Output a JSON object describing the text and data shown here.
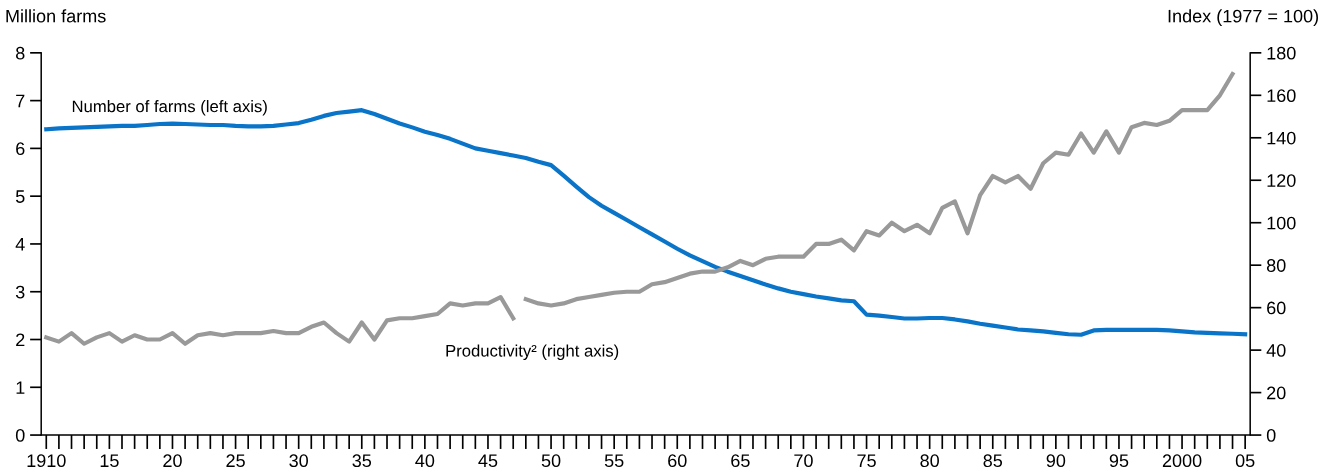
{
  "chart_data": {
    "type": "line",
    "ylabel": "Million farms",
    "y2label": "Index (1977 = 100)",
    "xlim": [
      1909.6,
      2005.4
    ],
    "xticks": [
      {
        "value": 1910,
        "label": "1910"
      },
      {
        "value": 1911,
        "label": null
      },
      {
        "value": 1912,
        "label": null
      },
      {
        "value": 1913,
        "label": null
      },
      {
        "value": 1914,
        "label": null
      },
      {
        "value": 1915,
        "label": "15"
      },
      {
        "value": 1916,
        "label": null
      },
      {
        "value": 1917,
        "label": null
      },
      {
        "value": 1918,
        "label": null
      },
      {
        "value": 1919,
        "label": null
      },
      {
        "value": 1920,
        "label": "20"
      },
      {
        "value": 1921,
        "label": null
      },
      {
        "value": 1922,
        "label": null
      },
      {
        "value": 1923,
        "label": null
      },
      {
        "value": 1924,
        "label": null
      },
      {
        "value": 1925,
        "label": "25"
      },
      {
        "value": 1926,
        "label": null
      },
      {
        "value": 1927,
        "label": null
      },
      {
        "value": 1928,
        "label": null
      },
      {
        "value": 1929,
        "label": null
      },
      {
        "value": 1930,
        "label": "30"
      },
      {
        "value": 1931,
        "label": null
      },
      {
        "value": 1932,
        "label": null
      },
      {
        "value": 1933,
        "label": null
      },
      {
        "value": 1934,
        "label": null
      },
      {
        "value": 1935,
        "label": "35"
      },
      {
        "value": 1936,
        "label": null
      },
      {
        "value": 1937,
        "label": null
      },
      {
        "value": 1938,
        "label": null
      },
      {
        "value": 1939,
        "label": null
      },
      {
        "value": 1940,
        "label": "40"
      },
      {
        "value": 1941,
        "label": null
      },
      {
        "value": 1942,
        "label": null
      },
      {
        "value": 1943,
        "label": null
      },
      {
        "value": 1944,
        "label": null
      },
      {
        "value": 1945,
        "label": "45"
      },
      {
        "value": 1946,
        "label": null
      },
      {
        "value": 1947,
        "label": null
      },
      {
        "value": 1948,
        "label": null
      },
      {
        "value": 1949,
        "label": null
      },
      {
        "value": 1950,
        "label": "50"
      },
      {
        "value": 1951,
        "label": null
      },
      {
        "value": 1952,
        "label": null
      },
      {
        "value": 1953,
        "label": null
      },
      {
        "value": 1954,
        "label": null
      },
      {
        "value": 1955,
        "label": "55"
      },
      {
        "value": 1956,
        "label": null
      },
      {
        "value": 1957,
        "label": null
      },
      {
        "value": 1958,
        "label": null
      },
      {
        "value": 1959,
        "label": null
      },
      {
        "value": 1960,
        "label": "60"
      },
      {
        "value": 1961,
        "label": null
      },
      {
        "value": 1962,
        "label": null
      },
      {
        "value": 1963,
        "label": null
      },
      {
        "value": 1964,
        "label": null
      },
      {
        "value": 1965,
        "label": "65"
      },
      {
        "value": 1966,
        "label": null
      },
      {
        "value": 1967,
        "label": null
      },
      {
        "value": 1968,
        "label": null
      },
      {
        "value": 1969,
        "label": null
      },
      {
        "value": 1970,
        "label": "70"
      },
      {
        "value": 1971,
        "label": null
      },
      {
        "value": 1972,
        "label": null
      },
      {
        "value": 1973,
        "label": null
      },
      {
        "value": 1974,
        "label": null
      },
      {
        "value": 1975,
        "label": "75"
      },
      {
        "value": 1976,
        "label": null
      },
      {
        "value": 1977,
        "label": null
      },
      {
        "value": 1978,
        "label": null
      },
      {
        "value": 1979,
        "label": null
      },
      {
        "value": 1980,
        "label": "80"
      },
      {
        "value": 1981,
        "label": null
      },
      {
        "value": 1982,
        "label": null
      },
      {
        "value": 1983,
        "label": null
      },
      {
        "value": 1984,
        "label": null
      },
      {
        "value": 1985,
        "label": "85"
      },
      {
        "value": 1986,
        "label": null
      },
      {
        "value": 1987,
        "label": null
      },
      {
        "value": 1988,
        "label": null
      },
      {
        "value": 1989,
        "label": null
      },
      {
        "value": 1990,
        "label": "90"
      },
      {
        "value": 1991,
        "label": null
      },
      {
        "value": 1992,
        "label": null
      },
      {
        "value": 1993,
        "label": null
      },
      {
        "value": 1994,
        "label": null
      },
      {
        "value": 1995,
        "label": "95"
      },
      {
        "value": 1996,
        "label": null
      },
      {
        "value": 1997,
        "label": null
      },
      {
        "value": 1998,
        "label": null
      },
      {
        "value": 1999,
        "label": null
      },
      {
        "value": 2000,
        "label": "2000"
      },
      {
        "value": 2001,
        "label": null
      },
      {
        "value": 2002,
        "label": null
      },
      {
        "value": 2003,
        "label": null
      },
      {
        "value": 2004,
        "label": null
      },
      {
        "value": 2005,
        "label": "05"
      }
    ],
    "ylim": [
      0,
      8
    ],
    "yticks": [
      0,
      1,
      2,
      3,
      4,
      5,
      6,
      7,
      8
    ],
    "y2lim": [
      0,
      180
    ],
    "y2ticks": [
      0,
      20,
      40,
      60,
      80,
      100,
      120,
      140,
      160,
      180
    ],
    "grid": false,
    "legend": false,
    "marker": "none",
    "line_style": "solid",
    "series": [
      {
        "name": "Number of farms (left axis)",
        "color": "#0a74c9",
        "x": [
          1910,
          1911,
          1912,
          1913,
          1914,
          1915,
          1916,
          1917,
          1918,
          1919,
          1920,
          1921,
          1922,
          1923,
          1924,
          1925,
          1926,
          1927,
          1928,
          1929,
          1930,
          1931,
          1932,
          1933,
          1934,
          1935,
          1936,
          1937,
          1938,
          1939,
          1940,
          1941,
          1942,
          1943,
          1944,
          1945,
          1946,
          1947,
          1948,
          1949,
          1950,
          1951,
          1952,
          1953,
          1954,
          1955,
          1956,
          1957,
          1958,
          1959,
          1960,
          1961,
          1962,
          1963,
          1964,
          1965,
          1966,
          1967,
          1968,
          1969,
          1970,
          1971,
          1972,
          1973,
          1974,
          1975,
          1976,
          1977,
          1978,
          1979,
          1980,
          1981,
          1982,
          1983,
          1984,
          1985,
          1986,
          1987,
          1988,
          1989,
          1990,
          1991,
          1992,
          1993,
          1994,
          1995,
          1996,
          1997,
          1998,
          1999,
          2000,
          2001,
          2002,
          2003,
          2004,
          2005
        ],
        "values": [
          6.4,
          6.42,
          6.43,
          6.44,
          6.45,
          6.46,
          6.47,
          6.47,
          6.49,
          6.51,
          6.52,
          6.51,
          6.5,
          6.49,
          6.49,
          6.47,
          6.46,
          6.46,
          6.47,
          6.5,
          6.53,
          6.6,
          6.68,
          6.74,
          6.77,
          6.8,
          6.72,
          6.62,
          6.52,
          6.44,
          6.35,
          6.28,
          6.2,
          6.1,
          6.0,
          5.95,
          5.9,
          5.85,
          5.8,
          5.72,
          5.65,
          5.43,
          5.2,
          4.98,
          4.8,
          4.65,
          4.5,
          4.35,
          4.2,
          4.05,
          3.9,
          3.76,
          3.64,
          3.52,
          3.42,
          3.33,
          3.24,
          3.15,
          3.07,
          3.0,
          2.95,
          2.9,
          2.86,
          2.82,
          2.8,
          2.52,
          2.5,
          2.47,
          2.44,
          2.44,
          2.45,
          2.45,
          2.42,
          2.38,
          2.33,
          2.29,
          2.25,
          2.21,
          2.19,
          2.17,
          2.14,
          2.11,
          2.1,
          2.19,
          2.2,
          2.2,
          2.2,
          2.2,
          2.2,
          2.19,
          2.17,
          2.15,
          2.14,
          2.13,
          2.12,
          2.11
        ]
      },
      {
        "name": "Productivity² (right axis)",
        "color": "#999999",
        "axis": "y2",
        "x": [
          1910,
          1911,
          1912,
          1913,
          1914,
          1915,
          1916,
          1917,
          1918,
          1919,
          1920,
          1921,
          1922,
          1923,
          1924,
          1925,
          1926,
          1927,
          1928,
          1929,
          1930,
          1931,
          1932,
          1933,
          1934,
          1935,
          1936,
          1937,
          1938,
          1939,
          1940,
          1941,
          1942,
          1943,
          1944,
          1945,
          1946,
          1947,
          1947.5,
          1948,
          1949,
          1950,
          1951,
          1952,
          1953,
          1954,
          1955,
          1956,
          1957,
          1958,
          1959,
          1960,
          1961,
          1962,
          1963,
          1964,
          1965,
          1966,
          1967,
          1968,
          1969,
          1970,
          1971,
          1972,
          1973,
          1974,
          1975,
          1976,
          1977,
          1978,
          1979,
          1980,
          1981,
          1982,
          1983,
          1984,
          1985,
          1986,
          1987,
          1988,
          1989,
          1990,
          1991,
          1992,
          1993,
          1994,
          1995,
          1996,
          1997,
          1998,
          1999,
          2000,
          2001,
          2002,
          2003,
          2004
        ],
        "values": [
          46,
          44,
          48,
          43,
          46,
          48,
          44,
          47,
          45,
          45,
          48,
          43,
          47,
          48,
          47,
          48,
          48,
          48,
          49,
          48,
          48,
          51,
          53,
          48,
          44,
          53,
          45,
          54,
          55,
          55,
          56,
          57,
          62,
          61,
          62,
          62,
          65,
          55,
          null,
          64,
          62,
          61,
          62,
          64,
          65,
          66,
          67,
          67.5,
          67.5,
          71,
          72,
          74,
          76,
          77,
          77,
          79,
          82,
          80,
          83,
          84,
          84,
          84,
          90,
          90,
          92,
          87,
          96,
          94,
          100,
          96,
          99,
          95,
          107,
          110,
          95,
          113,
          122,
          119,
          122,
          116,
          128,
          133,
          132,
          142,
          133,
          143,
          133,
          145,
          147,
          146,
          148,
          153,
          153,
          153,
          160,
          170
        ]
      }
    ]
  }
}
